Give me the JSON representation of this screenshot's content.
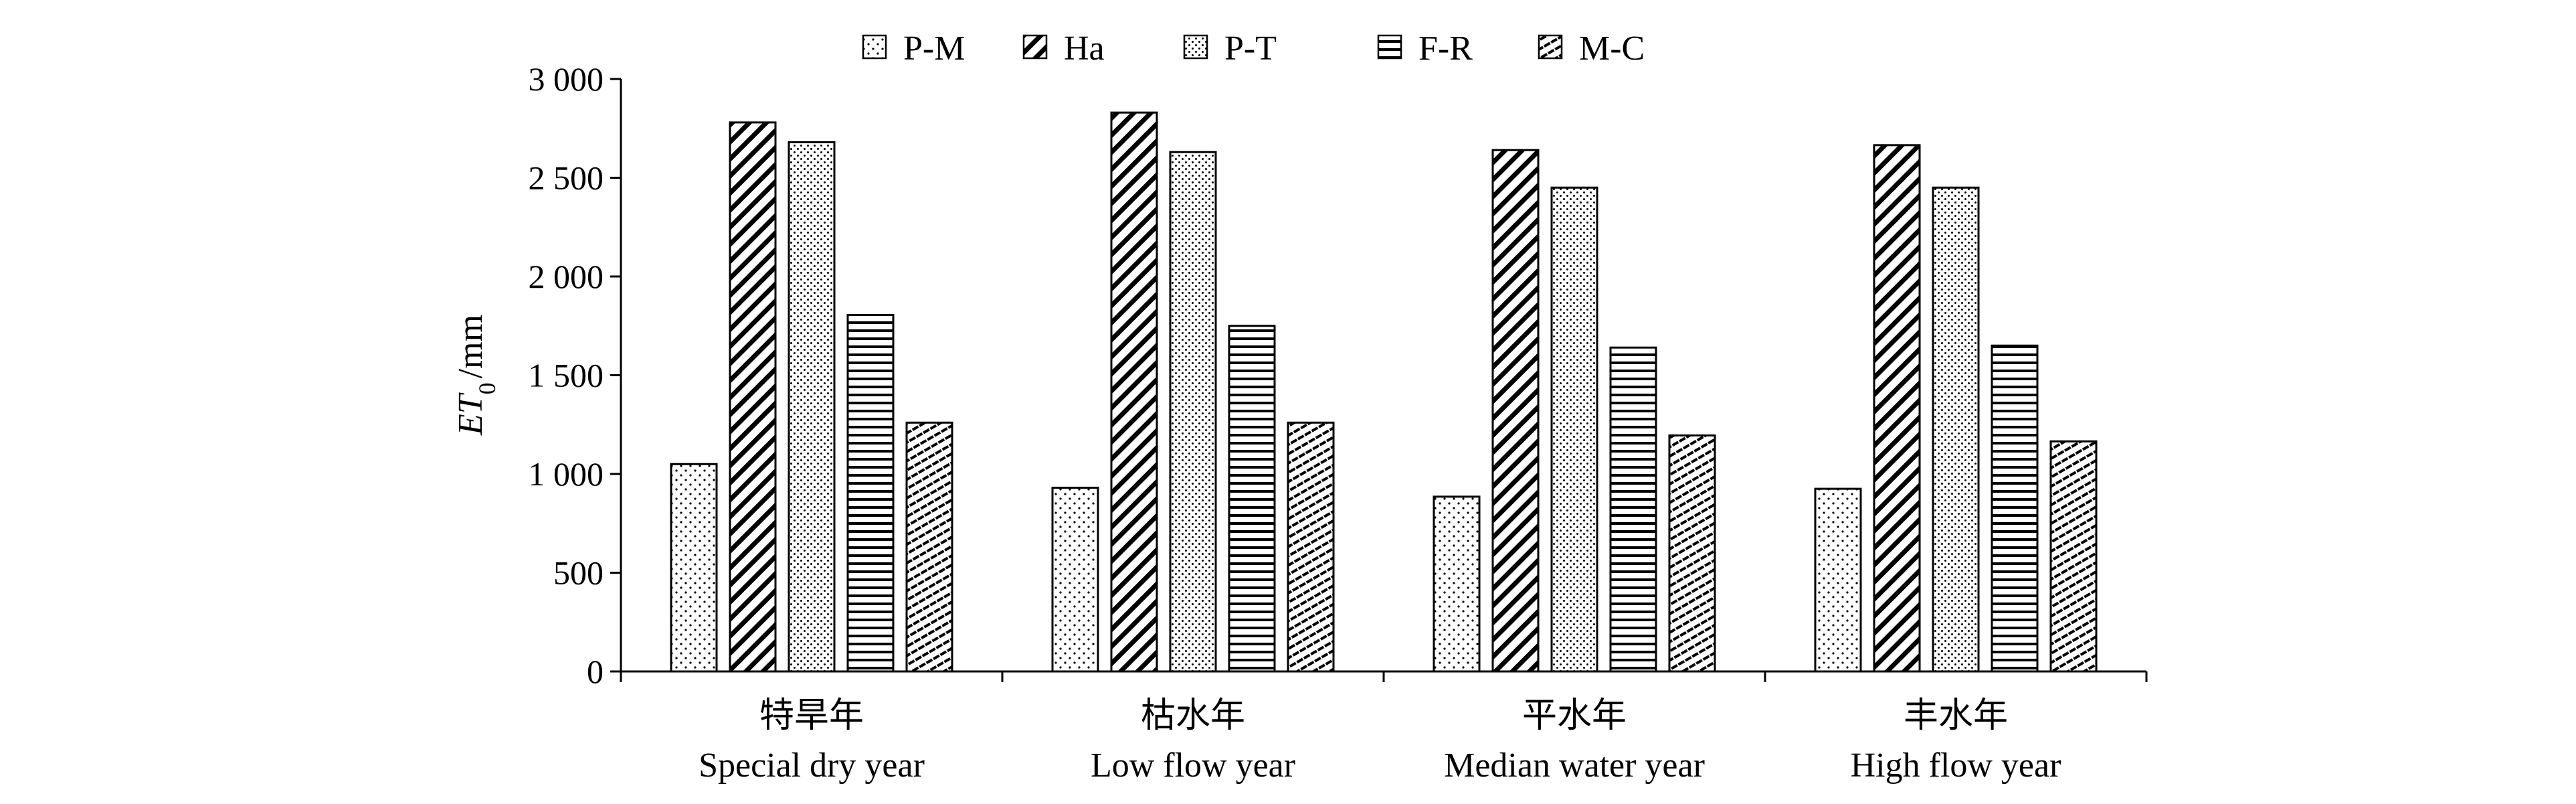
{
  "chart_data": {
    "type": "bar",
    "title": "",
    "ylabel": {
      "main": "ET",
      "sub": "0",
      "unit": "/mm"
    },
    "xlabel": "",
    "ylim": [
      0,
      3000
    ],
    "yticks": [
      0,
      500,
      1000,
      1500,
      2000,
      2500,
      3000
    ],
    "ytick_labels": [
      "0",
      "500",
      "1 000",
      "1 500",
      "2 000",
      "2 500",
      "3 000"
    ],
    "categories": [
      {
        "cn": "特旱年",
        "en": "Special dry year"
      },
      {
        "cn": "枯水年",
        "en": "Low flow year"
      },
      {
        "cn": "平水年",
        "en": "Median water year"
      },
      {
        "cn": "丰水年",
        "en": "High flow year"
      }
    ],
    "series": [
      {
        "name": "P-M",
        "pattern": "dots",
        "values": [
          1050,
          930,
          885,
          925
        ]
      },
      {
        "name": "Ha",
        "pattern": "diag",
        "values": [
          2780,
          2830,
          2640,
          2665
        ]
      },
      {
        "name": "P-T",
        "pattern": "stipple",
        "values": [
          2680,
          2630,
          2450,
          2450
        ]
      },
      {
        "name": "F-R",
        "pattern": "horiz",
        "values": [
          1805,
          1750,
          1640,
          1650
        ]
      },
      {
        "name": "M-C",
        "pattern": "hatch",
        "values": [
          1260,
          1260,
          1195,
          1165
        ]
      }
    ],
    "legend_position": "top",
    "grid": false
  }
}
